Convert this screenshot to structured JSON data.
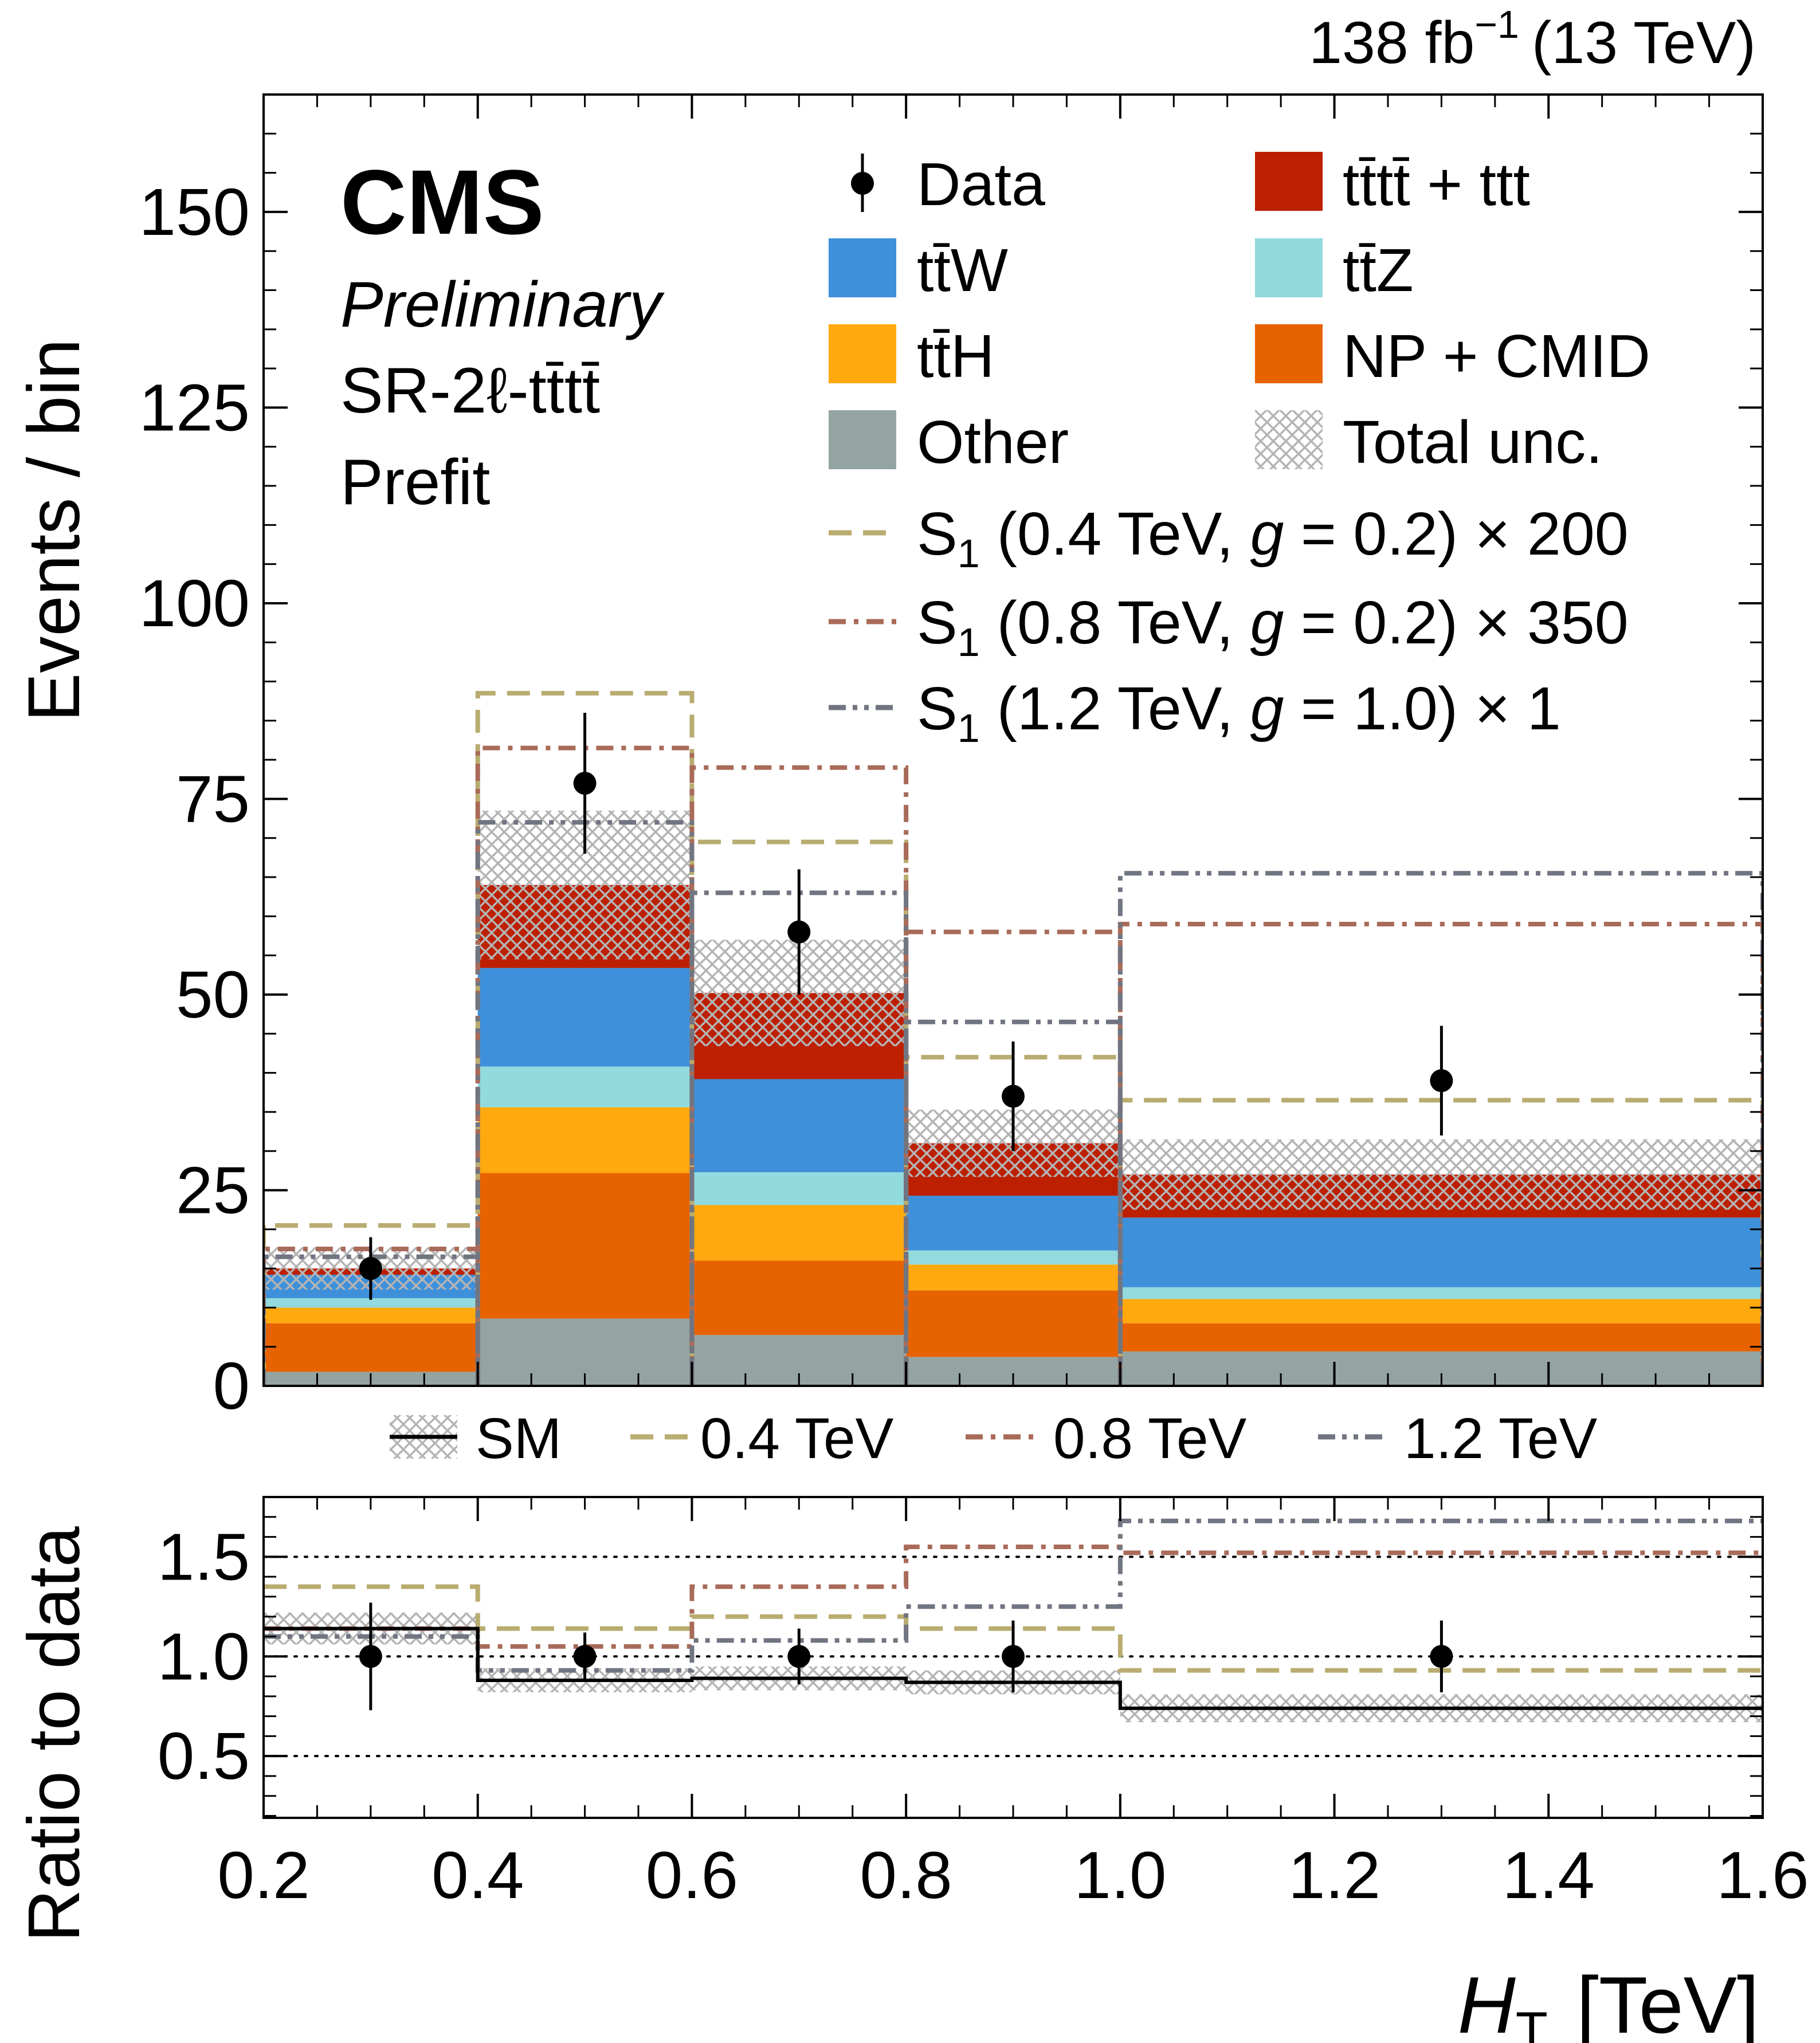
{
  "header": {
    "lumi_main": "138 fb",
    "lumi_exp": "−1",
    "lumi_energy": "(13 TeV)"
  },
  "labels": {
    "experiment": "CMS",
    "status": "Preliminary",
    "region": "SR-2ℓ-tt̄tt̄",
    "fit": "Prefit"
  },
  "legend": {
    "data": "Data",
    "tttt": "tt̄tt̄ + ttt",
    "ttW": "tt̄W",
    "ttZ": "tt̄Z",
    "ttH": "tt̄H",
    "np": "NP + CMID",
    "other": "Other",
    "unc": "Total unc.",
    "s04_sym": "S",
    "s04_sub": "1",
    "s04_a": "(0.4 TeV, ",
    "s04_g": "g",
    "s04_b": " = 0.2) × 200",
    "s08_sym": "S",
    "s08_sub": "1",
    "s08_a": "(0.8 TeV, ",
    "s08_g": "g",
    "s08_b": " = 0.2) × 350",
    "s12_sym": "S",
    "s12_sub": "1",
    "s12_a": "(1.2 TeV, ",
    "s12_g": "g",
    "s12_b": " = 1.0) × 1"
  },
  "ratio_legend": {
    "sm": "SM",
    "s04": "0.4 TeV",
    "s08": "0.8 TeV",
    "s12": "1.2 TeV"
  },
  "colors": {
    "other": "#94a4a2",
    "np": "#e76300",
    "ttH": "#ffa90e",
    "ttZ": "#92dadd",
    "ttW": "#3f90da",
    "tttt": "#bd1f01",
    "s04": "#b9ac70",
    "s08": "#a96b59",
    "s12": "#717581",
    "unc": "#bbbbbb"
  },
  "chart_data": [
    {
      "type": "bar",
      "stacked": true,
      "title": "",
      "xlabel": "H_T [TeV]",
      "ylabel": "Events / bin",
      "bin_edges": [
        0.2,
        0.4,
        0.6,
        0.8,
        1.0,
        1.6
      ],
      "xlim": [
        0.2,
        1.6
      ],
      "ylim": [
        0,
        165
      ],
      "y_ticks": [
        0,
        25,
        50,
        75,
        100,
        125,
        150
      ],
      "series": [
        {
          "name": "Other",
          "key": "other",
          "values": [
            1.8,
            8.6,
            6.5,
            3.7,
            4.4
          ]
        },
        {
          "name": "NP + CMID",
          "key": "np",
          "values": [
            6.2,
            18.6,
            9.5,
            8.5,
            3.6
          ]
        },
        {
          "name": "tt̄H",
          "key": "ttH",
          "values": [
            2.0,
            8.4,
            7.1,
            3.3,
            3.1
          ]
        },
        {
          "name": "tt̄Z",
          "key": "ttZ",
          "values": [
            1.2,
            5.2,
            4.2,
            1.8,
            1.5
          ]
        },
        {
          "name": "tt̄W",
          "key": "ttW",
          "values": [
            3.0,
            12.6,
            11.9,
            7.0,
            8.9
          ]
        },
        {
          "name": "tt̄tt̄ + ttt",
          "key": "tttt",
          "values": [
            0.8,
            10.6,
            11.0,
            6.7,
            5.5
          ]
        }
      ],
      "total_uncertainty": {
        "name": "Total unc.",
        "up": [
          2.7,
          9.5,
          6.8,
          4.3,
          4.5
        ],
        "down": [
          2.7,
          9.5,
          6.8,
          4.3,
          4.5
        ]
      },
      "data": {
        "name": "Data",
        "x": [
          0.3,
          0.5,
          0.7,
          0.9,
          1.3
        ],
        "y": [
          15,
          77,
          58,
          37,
          39
        ],
        "err": [
          4.0,
          9.0,
          8.0,
          7.0,
          7.0
        ]
      },
      "signals": [
        {
          "name": "S1 (0.4 TeV, g = 0.2) × 200",
          "key": "s04",
          "style": "dashed",
          "values": [
            20.5,
            88.5,
            69.5,
            42.0,
            36.5
          ]
        },
        {
          "name": "S1 (0.8 TeV, g = 0.2) × 350",
          "key": "s08",
          "style": "dashdot",
          "values": [
            17.5,
            81.5,
            79.0,
            58.0,
            59.0
          ]
        },
        {
          "name": "S1 (1.2 TeV, g = 1.0) × 1",
          "key": "s12",
          "style": "dashdotdot",
          "values": [
            16.5,
            72.0,
            63.0,
            46.5,
            65.5
          ]
        }
      ]
    },
    {
      "type": "line",
      "title": "",
      "xlabel": "H_T [TeV]",
      "ylabel": "Ratio to data",
      "bin_edges": [
        0.2,
        0.4,
        0.6,
        0.8,
        1.0,
        1.6
      ],
      "xlim": [
        0.2,
        1.6
      ],
      "ylim": [
        0.19,
        1.8
      ],
      "y_ticks": [
        0.5,
        1.0,
        1.5
      ],
      "x_ticks": [
        0.2,
        0.4,
        0.6,
        0.8,
        1.0,
        1.2,
        1.4,
        1.6
      ],
      "y_tick_labels": [
        "0.5",
        "1.0",
        "1.5"
      ],
      "x_tick_labels": [
        "0.2",
        "0.4",
        "0.6",
        "0.8",
        "1.0",
        "1.2",
        "1.4",
        "1.6"
      ],
      "reference_lines": [
        0.5,
        1.0,
        1.5
      ],
      "series": [
        {
          "name": "SM",
          "key": "sm",
          "values": [
            1.14,
            0.88,
            0.89,
            0.87,
            0.74
          ],
          "unc": [
            0.08,
            0.06,
            0.06,
            0.06,
            0.07
          ]
        },
        {
          "name": "0.4 TeV",
          "key": "s04",
          "values": [
            1.35,
            1.14,
            1.2,
            1.14,
            0.93
          ]
        },
        {
          "name": "0.8 TeV",
          "key": "s08",
          "values": [
            1.14,
            1.05,
            1.35,
            1.55,
            1.52
          ]
        },
        {
          "name": "1.2 TeV",
          "key": "s12",
          "values": [
            1.1,
            0.93,
            1.08,
            1.25,
            1.68
          ]
        }
      ],
      "data": {
        "x": [
          0.3,
          0.5,
          0.7,
          0.9,
          1.3
        ],
        "y": [
          1.0,
          1.0,
          1.0,
          1.0,
          1.0
        ],
        "err": [
          0.27,
          0.12,
          0.14,
          0.18,
          0.18
        ]
      }
    }
  ]
}
